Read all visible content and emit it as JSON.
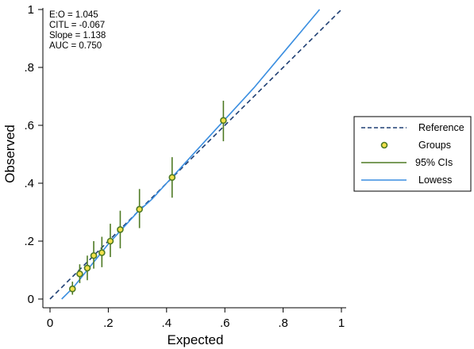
{
  "chart_data": {
    "type": "scatter",
    "xlabel": "Expected",
    "ylabel": "Observed",
    "xlim": [
      0,
      1
    ],
    "ylim": [
      0,
      1
    ],
    "x_ticks": [
      0,
      0.2,
      0.4,
      0.6,
      0.8,
      1
    ],
    "y_ticks": [
      0,
      0.2,
      0.4,
      0.6,
      0.8,
      1
    ],
    "x_tick_labels": [
      "0",
      ".2",
      ".4",
      ".6",
      ".8",
      "1"
    ],
    "y_tick_labels": [
      "0",
      ".2",
      ".4",
      ".6",
      ".8",
      "1"
    ],
    "grid": false,
    "legend_position": "right",
    "stats": [
      "E:O = 1.045",
      "CITL = -0.067",
      "Slope = 1.138",
      "AUC = 0.750"
    ],
    "series": [
      {
        "name": "Reference",
        "style": "dashed",
        "color": "#1f3f73",
        "points": [
          [
            0,
            0
          ],
          [
            1,
            1
          ]
        ]
      },
      {
        "name": "Groups",
        "style": "marker",
        "color": "#4e7a24",
        "points": [
          [
            0.077,
            0.035
          ],
          [
            0.102,
            0.087
          ],
          [
            0.128,
            0.107
          ],
          [
            0.15,
            0.15
          ],
          [
            0.178,
            0.16
          ],
          [
            0.207,
            0.2
          ],
          [
            0.241,
            0.24
          ],
          [
            0.307,
            0.31
          ],
          [
            0.419,
            0.42
          ],
          [
            0.595,
            0.617
          ]
        ]
      },
      {
        "name": "95% CIs",
        "style": "errorbar",
        "color": "#4e7a24",
        "intervals": [
          [
            0.077,
            0.015,
            0.06
          ],
          [
            0.102,
            0.055,
            0.12
          ],
          [
            0.128,
            0.065,
            0.15
          ],
          [
            0.15,
            0.105,
            0.2
          ],
          [
            0.178,
            0.11,
            0.215
          ],
          [
            0.207,
            0.145,
            0.26
          ],
          [
            0.241,
            0.175,
            0.305
          ],
          [
            0.307,
            0.245,
            0.38
          ],
          [
            0.419,
            0.35,
            0.49
          ],
          [
            0.595,
            0.545,
            0.685
          ]
        ]
      },
      {
        "name": "Lowess",
        "style": "solid",
        "color": "#3a8ee0",
        "points": [
          [
            0.04,
            0.0
          ],
          [
            0.08,
            0.04
          ],
          [
            0.12,
            0.09
          ],
          [
            0.16,
            0.14
          ],
          [
            0.2,
            0.19
          ],
          [
            0.25,
            0.245
          ],
          [
            0.3,
            0.3
          ],
          [
            0.35,
            0.345
          ],
          [
            0.4,
            0.4
          ],
          [
            0.45,
            0.455
          ],
          [
            0.5,
            0.51
          ],
          [
            0.6,
            0.62
          ],
          [
            0.7,
            0.73
          ],
          [
            0.8,
            0.85
          ],
          [
            0.925,
            1.0
          ]
        ]
      }
    ]
  }
}
